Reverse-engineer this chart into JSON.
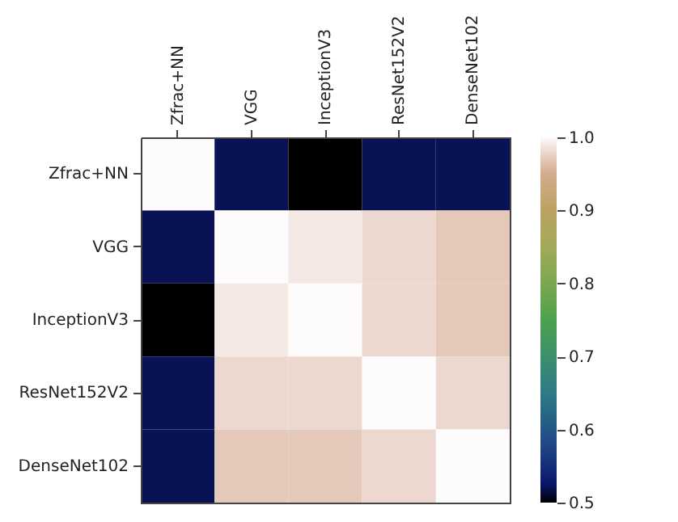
{
  "chart_data": {
    "type": "heatmap",
    "categories": [
      "Zfrac+NN",
      "VGG",
      "InceptionV3",
      "ResNet152V2",
      "DenseNet102"
    ],
    "y_categories": [
      "Zfrac+NN",
      "VGG",
      "InceptionV3",
      "ResNet152V2",
      "DenseNet102"
    ],
    "cells": [
      [
        1.0,
        0.52,
        0.5,
        0.52,
        0.52
      ],
      [
        0.52,
        1.0,
        0.99,
        0.98,
        0.97
      ],
      [
        0.5,
        0.99,
        1.0,
        0.98,
        0.97
      ],
      [
        0.52,
        0.98,
        0.98,
        1.0,
        0.98
      ],
      [
        0.52,
        0.97,
        0.97,
        0.98,
        1.0
      ]
    ],
    "clim": [
      0.5,
      1.0
    ],
    "cticks": [
      0.5,
      0.6,
      0.7,
      0.8,
      0.9,
      {
        "value": 1,
        "label": "1.0"
      }
    ]
  }
}
